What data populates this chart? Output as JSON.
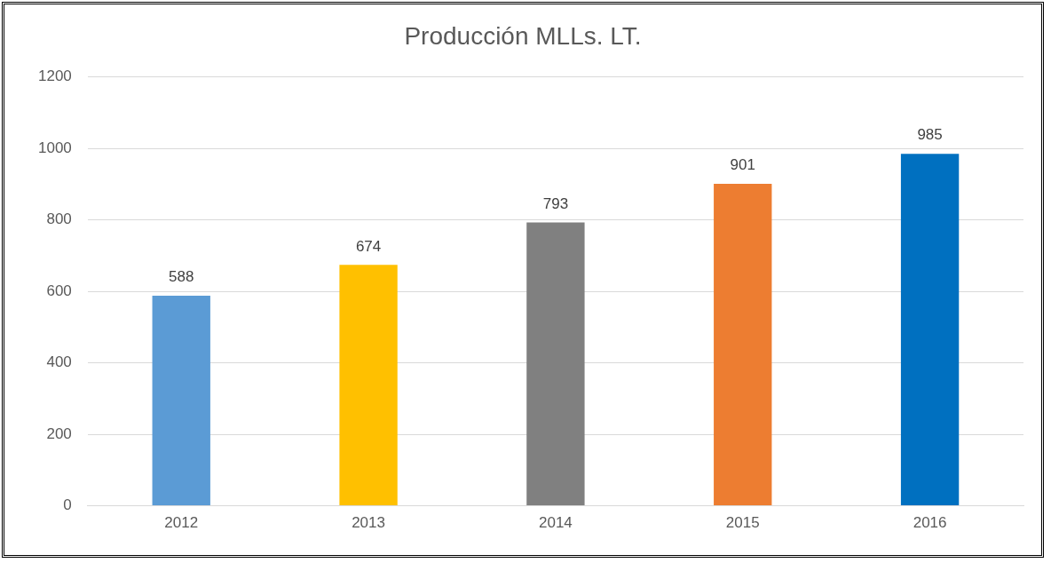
{
  "chart_data": {
    "type": "bar",
    "title": "Producción MLLs. LT.",
    "categories": [
      "2012",
      "2013",
      "2014",
      "2015",
      "2016"
    ],
    "values": [
      588,
      674,
      793,
      901,
      985
    ],
    "colors": [
      "#5b9bd5",
      "#ffc000",
      "#808080",
      "#ed7d31",
      "#0070c0"
    ],
    "ylim": [
      0,
      1200
    ],
    "yticks": [
      0,
      200,
      400,
      600,
      800,
      1000,
      1200
    ],
    "grid": "y",
    "legend": false,
    "data_labels": true
  }
}
